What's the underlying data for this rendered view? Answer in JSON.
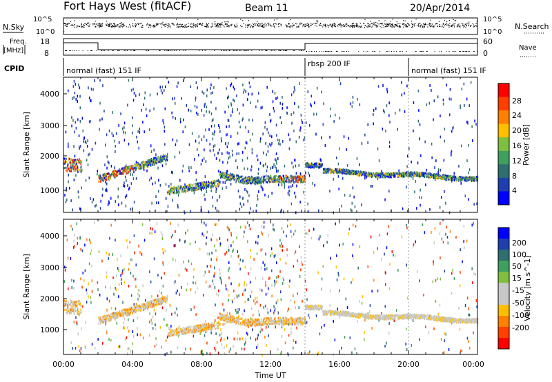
{
  "header": {
    "title": "Fort Hays West (fitACF)",
    "beam": "Beam 11",
    "date": "20/Apr/2014"
  },
  "strips": {
    "nsky_label": "N.Sky",
    "nsearch_label": "N.Search",
    "noise_ticks": [
      "10^5",
      "10^0"
    ],
    "freq_label_1": "Freq.",
    "freq_label_2": "[MHz]",
    "freq_ticks": [
      "18",
      "8"
    ],
    "nave_label": "Nave",
    "nave_ticks": [
      "60",
      "0"
    ],
    "cpid_label": "CPID"
  },
  "cpid_segments": [
    {
      "label": "normal (fast) 151 IF",
      "start": 0,
      "end": 14
    },
    {
      "label": "rbsp 200 IF",
      "start": 14,
      "end": 20
    },
    {
      "label": "normal (fast) 151 IF",
      "start": 20,
      "end": 24
    }
  ],
  "colors": {
    "power": [
      "#0000ff",
      "#1f3faf",
      "#2f6f6f",
      "#3f9f5f",
      "#7fbf3f",
      "#ffbf00",
      "#ff7f00",
      "#ff3f00",
      "#ff0000"
    ],
    "velocity": [
      "#ff0000",
      "#ff4000",
      "#ff8000",
      "#ffbf00",
      "#c8c8c8",
      "#c8c8c8",
      "#7fbf3f",
      "#3f9f5f",
      "#2f6f6f",
      "#1f3faf",
      "#0000ff"
    ]
  },
  "chart_data": [
    {
      "type": "heatmap",
      "panel": "power",
      "ylabel": "Slant Range [km]",
      "yticks": [
        1000,
        2000,
        3000,
        4000
      ],
      "ylim": [
        180,
        4600
      ],
      "xlim": [
        0,
        24
      ],
      "xlabel": "",
      "colorbar": {
        "label": "Power [dB]",
        "ticks": [
          4,
          8,
          12,
          16,
          20,
          24,
          28
        ],
        "range": [
          0,
          32
        ]
      }
    },
    {
      "type": "heatmap",
      "panel": "velocity",
      "ylabel": "Slant Range [km]",
      "yticks": [
        1000,
        2000,
        3000,
        4000
      ],
      "ylim": [
        180,
        4600
      ],
      "xlim": [
        0,
        24
      ],
      "xlabel": "Time UT",
      "xticks": [
        "00:00",
        "04:00",
        "08:00",
        "12:00",
        "16:00",
        "20:00",
        "00:00"
      ],
      "colorbar": {
        "label": "Velocity [m s^-1]",
        "ticks": [
          "200",
          "100",
          "50",
          "15",
          "-15",
          "-50",
          "-100",
          "-200"
        ]
      }
    }
  ]
}
